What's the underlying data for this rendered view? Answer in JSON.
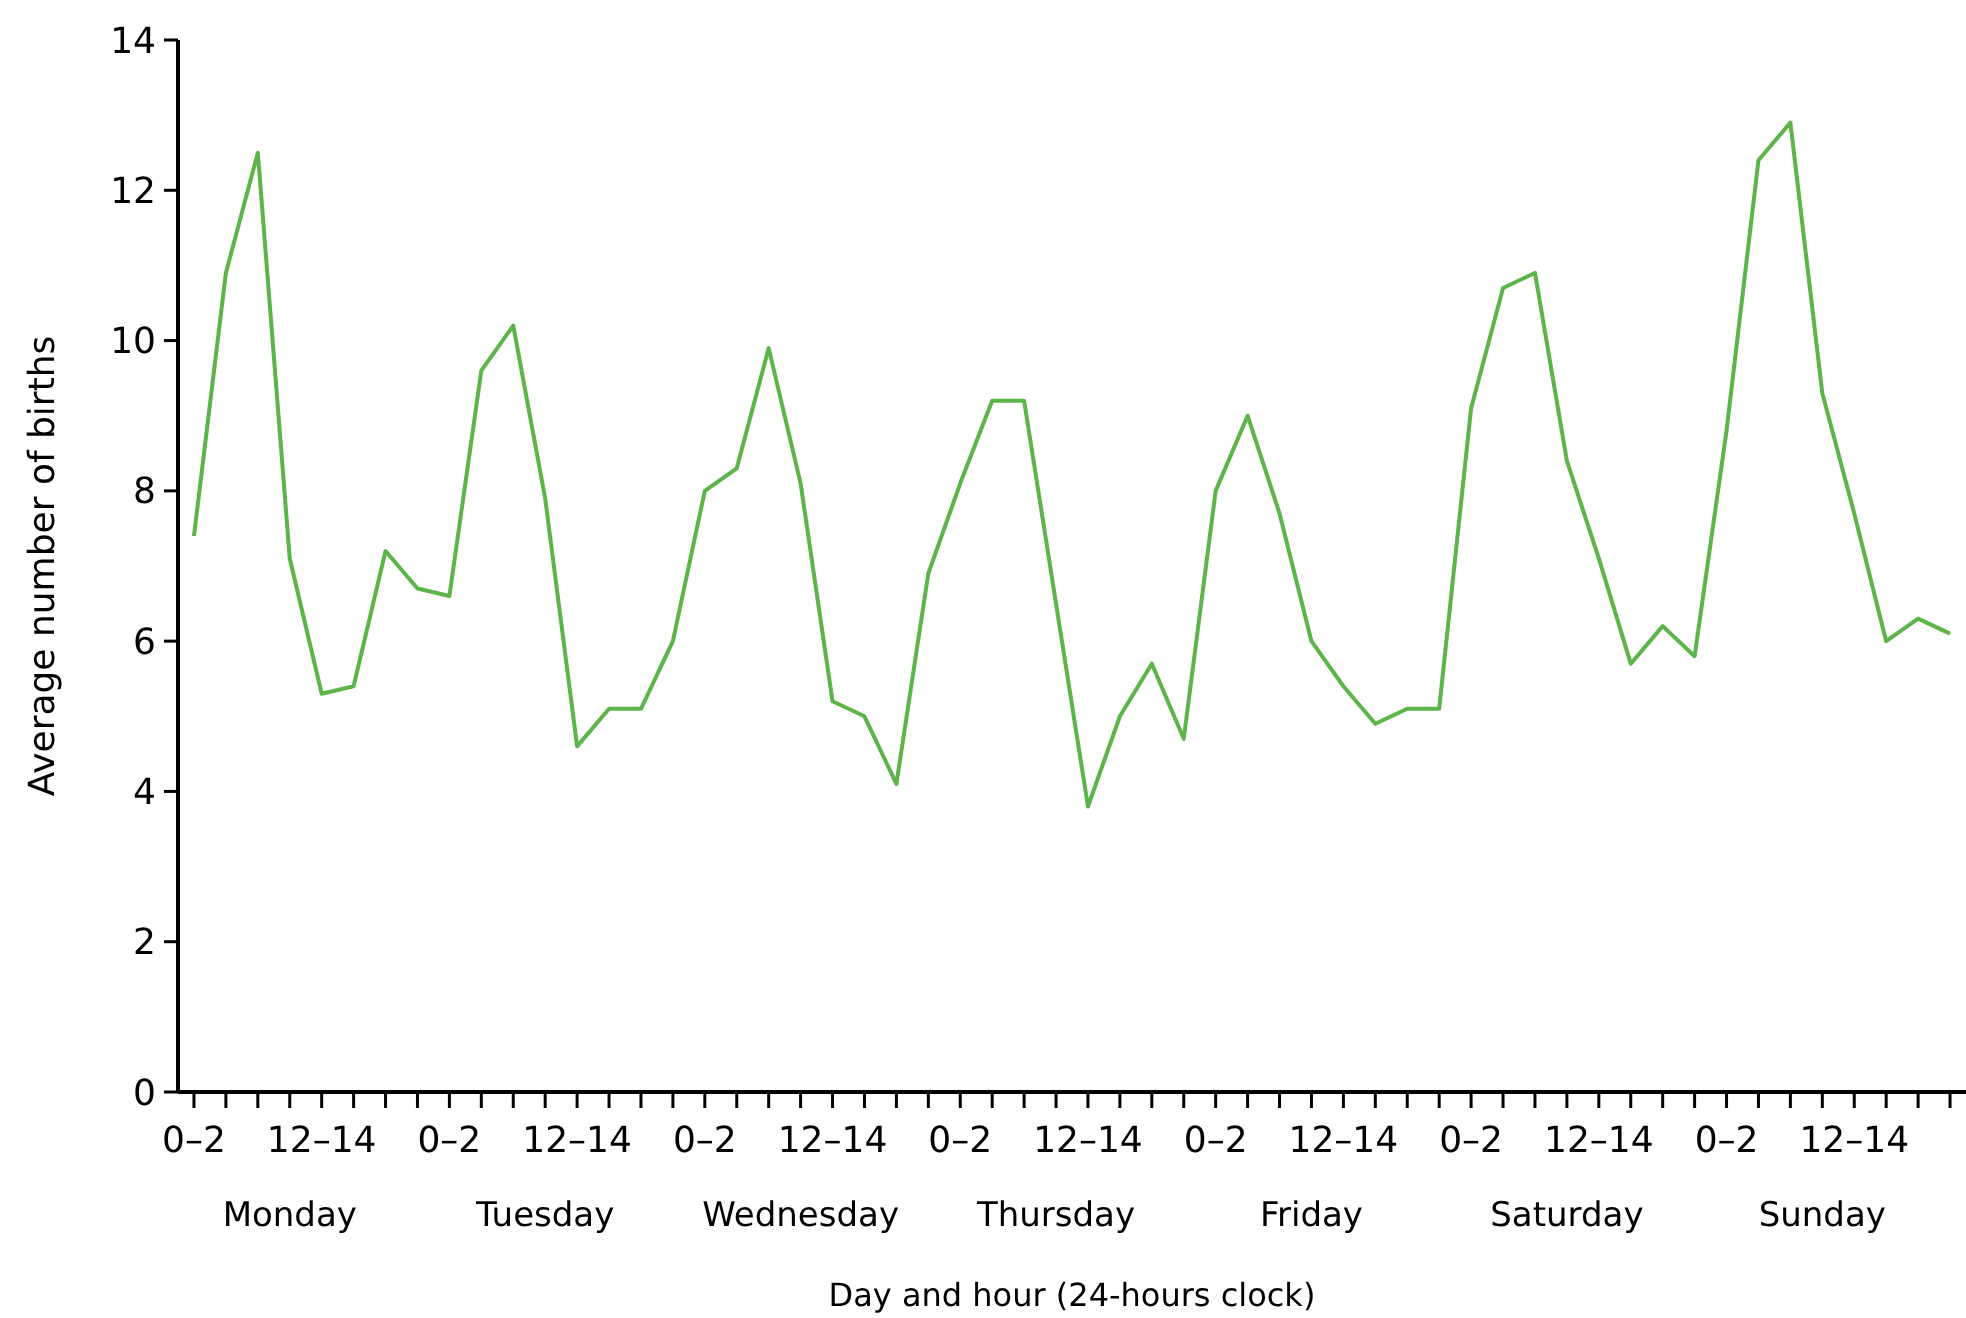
{
  "chart_data": {
    "type": "line",
    "xlabel": "Day and hour (24-hours clock)",
    "ylabel": "Average number of births",
    "categories": [
      "0–2",
      null,
      null,
      null,
      "12–14",
      null,
      null,
      null,
      "0–2",
      null,
      null,
      null,
      "12–14",
      null,
      null,
      null,
      "0–2",
      null,
      null,
      null,
      "12–14",
      null,
      null,
      null,
      "0–2",
      null,
      null,
      null,
      "12–14",
      null,
      null,
      null,
      "0–2",
      null,
      null,
      null,
      "12–14",
      null,
      null,
      null,
      "0–2",
      null,
      null,
      null,
      "12–14",
      null,
      null,
      null,
      "0–2",
      null,
      null,
      null,
      "12–14",
      null,
      null,
      null
    ],
    "series": [
      {
        "color": "#5db44a",
        "values": [
          7.4,
          10.9,
          12.5,
          7.1,
          5.3,
          5.4,
          7.2,
          6.7,
          6.6,
          9.6,
          10.2,
          7.9,
          4.6,
          5.1,
          5.1,
          6.0,
          8.0,
          8.3,
          9.9,
          8.1,
          5.2,
          5.0,
          4.1,
          6.9,
          8.1,
          9.2,
          9.2,
          6.5,
          3.8,
          5.0,
          5.7,
          4.7,
          8.0,
          9.0,
          7.7,
          6.0,
          5.4,
          4.9,
          5.1,
          5.1,
          9.1,
          10.7,
          10.9,
          8.4,
          7.1,
          5.7,
          6.2,
          5.8,
          8.8,
          12.4,
          12.9,
          9.3,
          7.7,
          6.0,
          6.3,
          6.1
        ]
      }
    ],
    "ylim": [
      0,
      14
    ],
    "yticks": [
      0,
      2,
      4,
      6,
      8,
      10,
      12,
      14
    ],
    "grid": false,
    "marker": "none",
    "line_style": "solid",
    "annotations": [
      "Monday",
      "Tuesday",
      "Wednesday",
      "Thursday",
      "Friday",
      "Saturday",
      "Sunday"
    ]
  }
}
